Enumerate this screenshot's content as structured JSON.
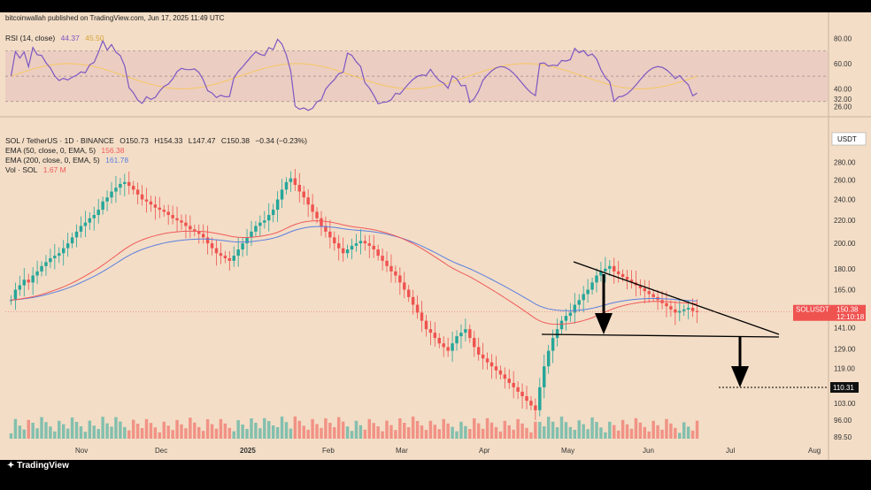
{
  "header": {
    "text": "bitcoinwallah published on TradingView.com, Jun 17, 2025 11:49 UTC"
  },
  "rsi": {
    "label": "RSI (14, close)",
    "value": "44.37",
    "ma_value": "45.50",
    "ticks": [
      "80.00",
      "60.00",
      "40.00",
      "32.00",
      "26.00"
    ],
    "line_color": "#7e57c2",
    "ma_color": "#f6c85f"
  },
  "price": {
    "symbol_line": "SOL / TetherUS · 1D · BINANCE",
    "o": "O150.73",
    "h": "H154.33",
    "l": "L147.47",
    "c": "C150.38",
    "chg": "−0.34 (−0.23%)",
    "ema50_label": "EMA (50, close, 0, EMA, 5)",
    "ema50_value": "156.38",
    "ema200_label": "EMA (200, close, 0, EMA, 5)",
    "ema200_value": "161.78",
    "vol_label": "Vol · SOL",
    "vol_value": "1.67 M",
    "currency": "USDT",
    "last_tag": "SOLUSDT",
    "last_price": "150.38",
    "countdown": "12:10:18",
    "target_price": "110.31",
    "ticks": [
      "280.00",
      "260.00",
      "240.00",
      "220.00",
      "200.00",
      "180.00",
      "165.00",
      "141.00",
      "129.00",
      "119.00",
      "103.00",
      "96.00",
      "89.50"
    ],
    "up_color": "#26a69a",
    "down_color": "#ef5350",
    "ema50_color": "#f05a5a",
    "ema200_color": "#5b7fe0"
  },
  "x_axis": [
    "Nov",
    "Dec",
    "2025",
    "Feb",
    "Mar",
    "Apr",
    "May",
    "Jun",
    "Jul",
    "Aug"
  ],
  "brand": "TradingView",
  "chart_data": {
    "type": "candlestick",
    "symbol": "SOL / TetherUS",
    "timeframe": "1D",
    "closes": [
      158,
      165,
      168,
      172,
      170,
      175,
      178,
      182,
      185,
      188,
      190,
      192,
      196,
      200,
      205,
      210,
      215,
      218,
      222,
      225,
      230,
      238,
      242,
      248,
      252,
      256,
      258,
      254,
      250,
      245,
      240,
      238,
      235,
      232,
      230,
      228,
      225,
      222,
      220,
      218,
      215,
      212,
      210,
      208,
      205,
      200,
      196,
      192,
      190,
      188,
      186,
      190,
      195,
      200,
      205,
      210,
      215,
      218,
      220,
      225,
      230,
      240,
      250,
      258,
      262,
      255,
      248,
      242,
      235,
      228,
      222,
      215,
      210,
      205,
      200,
      196,
      192,
      195,
      198,
      200,
      202,
      200,
      198,
      195,
      190,
      186,
      182,
      178,
      175,
      170,
      165,
      160,
      155,
      150,
      145,
      140,
      138,
      135,
      132,
      130,
      128,
      132,
      136,
      138,
      140,
      135,
      130,
      126,
      124,
      122,
      120,
      118,
      116,
      114,
      112,
      110,
      108,
      106,
      104,
      102,
      100,
      110,
      120,
      128,
      135,
      140,
      145,
      148,
      150,
      155,
      158,
      162,
      165,
      170,
      175,
      178,
      180,
      182,
      178,
      176,
      174,
      172,
      170,
      168,
      166,
      164,
      162,
      160,
      158,
      156,
      154,
      152,
      150,
      151,
      152,
      153,
      151,
      150.38
    ],
    "ema50_last": 156.38,
    "ema200_last": 161.78,
    "rsi_last": 44.37,
    "last_price": 150.38,
    "target": 110.31,
    "ylim": [
      89.5,
      290
    ]
  }
}
